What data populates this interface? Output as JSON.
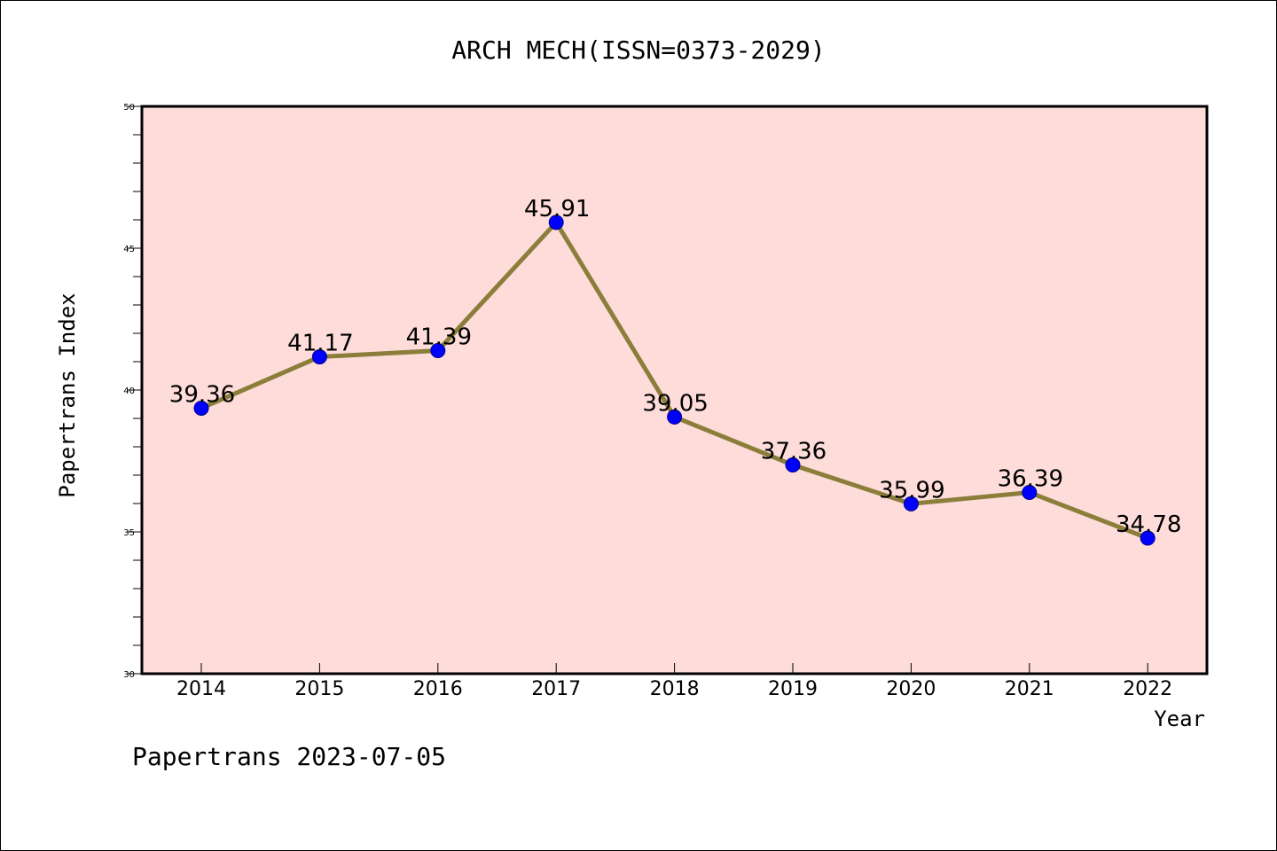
{
  "chart_data": {
    "type": "line",
    "title": "ARCH MECH(ISSN=0373-2029)",
    "xlabel": "Year",
    "ylabel": "Papertrans Index",
    "categories": [
      "2014",
      "2015",
      "2016",
      "2017",
      "2018",
      "2019",
      "2020",
      "2021",
      "2022"
    ],
    "values": [
      39.36,
      41.17,
      41.39,
      45.91,
      39.05,
      37.36,
      35.99,
      36.39,
      34.78
    ],
    "value_labels": [
      "39.36",
      "41.17",
      "41.39",
      "45.91",
      "39.05",
      "37.36",
      "35.99",
      "36.39",
      "34.78"
    ],
    "ylim": [
      30,
      50
    ],
    "yticks": [
      30,
      35,
      40,
      45,
      50
    ],
    "ytick_labels": [
      "30",
      "35",
      "40",
      "45",
      "50"
    ],
    "grid": false,
    "colors": {
      "plot_background": "#fddcd9",
      "line": "#8b7d3a",
      "marker": "#0000ff",
      "axes": "#000000"
    }
  },
  "footer": {
    "text": "Papertrans 2023-07-05"
  }
}
